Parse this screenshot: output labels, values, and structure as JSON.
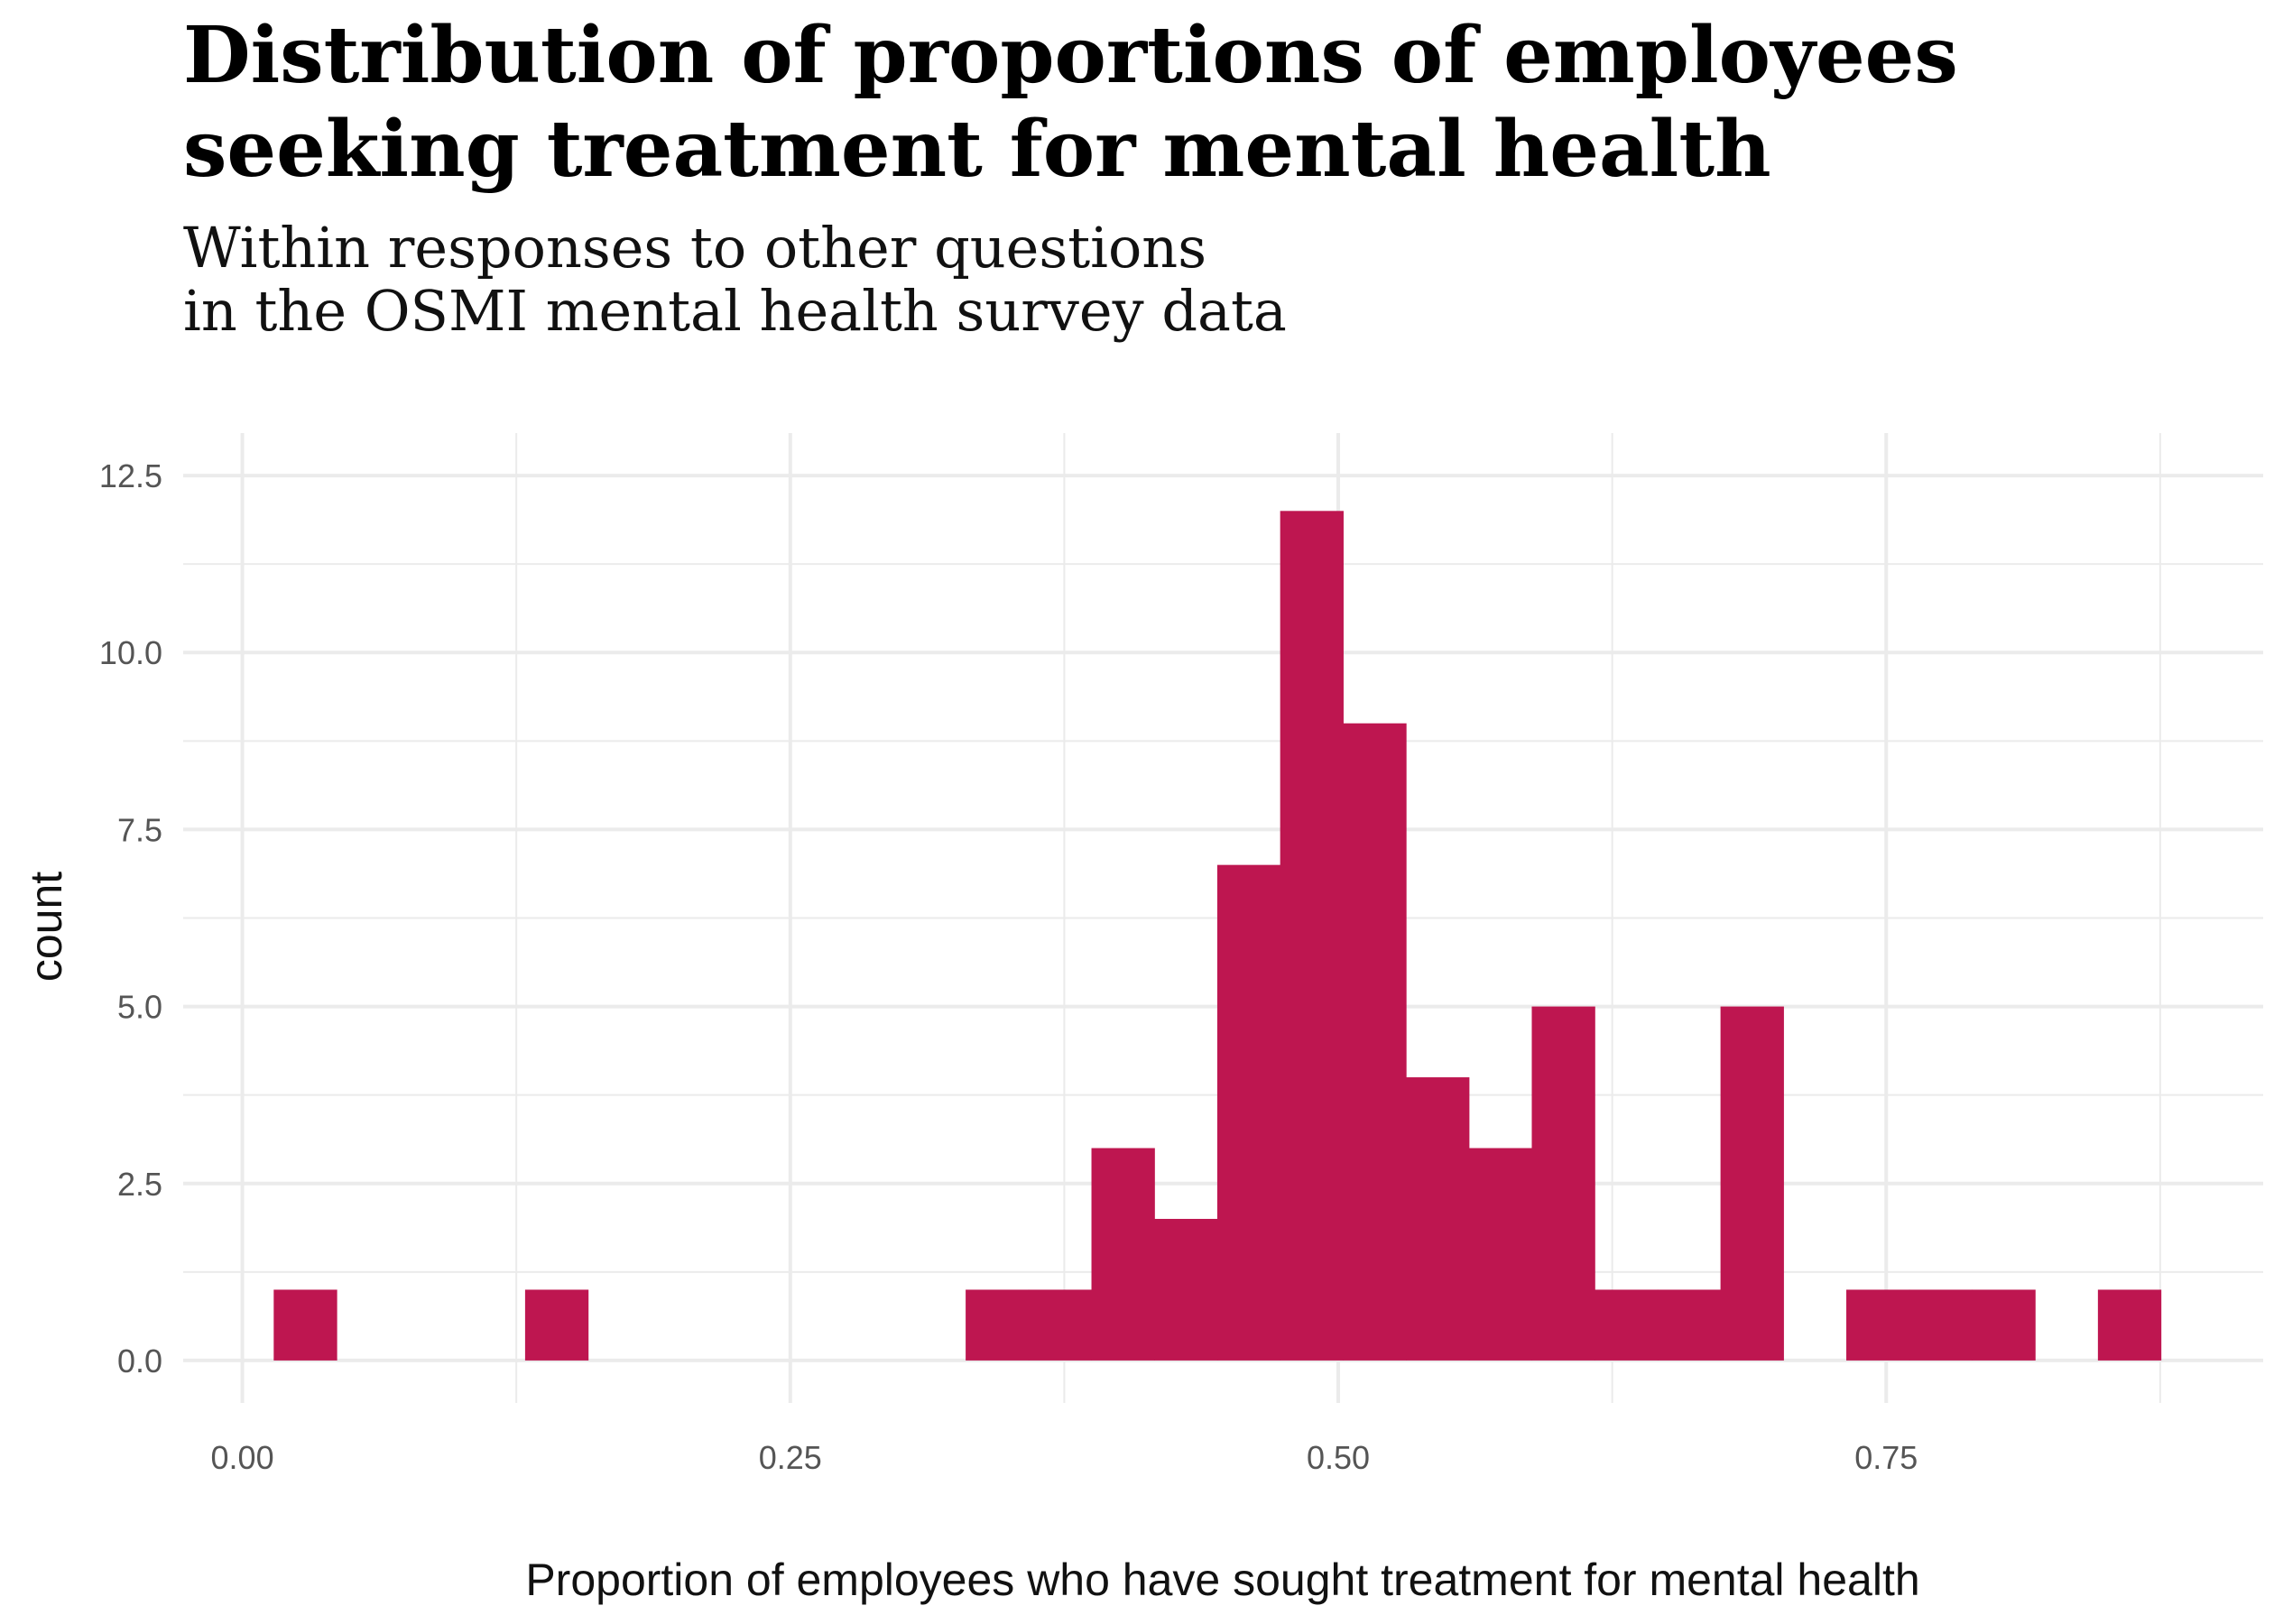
{
  "title": "Distribution of proportions of employees\nseeking treatment for mental health",
  "subtitle": "Within responses to other questions\nin the OSMI mental health survey data",
  "chart_data": {
    "type": "bar",
    "histogram": true,
    "bar_color": "#BE1650",
    "grid_color": "#EBEBEB",
    "grid": true,
    "xlabel": "Proportion of employees who have sought treatment for mental health",
    "ylabel": "count",
    "xlim": [
      -0.027,
      0.922
    ],
    "ylim": [
      -0.6,
      13.1
    ],
    "x_ticks": [
      0.0,
      0.25,
      0.5,
      0.75
    ],
    "x_tick_labels": [
      "0.00",
      "0.25",
      "0.50",
      "0.75"
    ],
    "y_ticks": [
      0.0,
      2.5,
      5.0,
      7.5,
      10.0,
      12.5
    ],
    "y_tick_labels": [
      "0.0",
      "2.5",
      "5.0",
      "7.5",
      "10.0",
      "12.5"
    ],
    "bin_width": 0.0287,
    "bins": [
      {
        "x0": 0.0143,
        "x1": 0.043,
        "count": 1
      },
      {
        "x0": 0.129,
        "x1": 0.1577,
        "count": 1
      },
      {
        "x0": 0.33,
        "x1": 0.3587,
        "count": 1
      },
      {
        "x0": 0.3587,
        "x1": 0.3874,
        "count": 1
      },
      {
        "x0": 0.3874,
        "x1": 0.4161,
        "count": 3
      },
      {
        "x0": 0.4161,
        "x1": 0.4448,
        "count": 2
      },
      {
        "x0": 0.4448,
        "x1": 0.4735,
        "count": 7
      },
      {
        "x0": 0.4735,
        "x1": 0.5022,
        "count": 12
      },
      {
        "x0": 0.5022,
        "x1": 0.5309,
        "count": 9
      },
      {
        "x0": 0.5309,
        "x1": 0.5596,
        "count": 4
      },
      {
        "x0": 0.5596,
        "x1": 0.5883,
        "count": 3
      },
      {
        "x0": 0.5883,
        "x1": 0.617,
        "count": 5
      },
      {
        "x0": 0.617,
        "x1": 0.6457,
        "count": 1
      },
      {
        "x0": 0.6457,
        "x1": 0.6744,
        "count": 1
      },
      {
        "x0": 0.6744,
        "x1": 0.7031,
        "count": 5
      },
      {
        "x0": 0.7318,
        "x1": 0.7605,
        "count": 1
      },
      {
        "x0": 0.7605,
        "x1": 0.7892,
        "count": 1
      },
      {
        "x0": 0.7892,
        "x1": 0.8179,
        "count": 1
      },
      {
        "x0": 0.8466,
        "x1": 0.8753,
        "count": 1
      }
    ]
  }
}
